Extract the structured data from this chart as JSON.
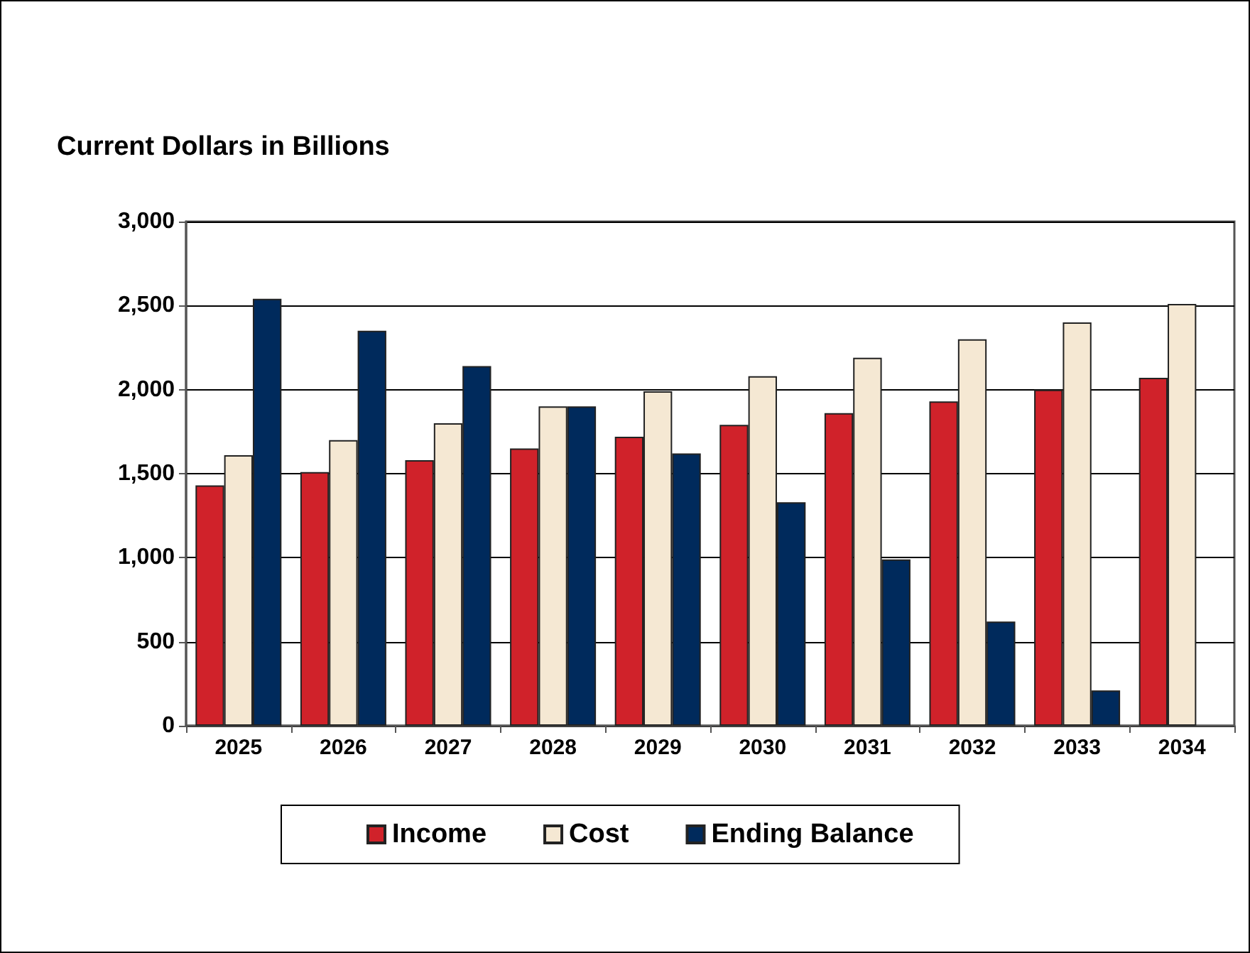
{
  "chart_data": {
    "type": "bar",
    "title": "Current Dollars in Billions",
    "categories": [
      "2025",
      "2026",
      "2027",
      "2028",
      "2029",
      "2030",
      "2031",
      "2032",
      "2033",
      "2034"
    ],
    "series": [
      {
        "name": "Income",
        "color": "#d0222a",
        "values": [
          1430,
          1510,
          1580,
          1650,
          1720,
          1790,
          1860,
          1930,
          2000,
          2070
        ]
      },
      {
        "name": "Cost",
        "color": "#f5e8d3",
        "values": [
          1610,
          1700,
          1800,
          1900,
          1990,
          2080,
          2190,
          2300,
          2400,
          2510
        ]
      },
      {
        "name": "Ending Balance",
        "color": "#002a5c",
        "values": [
          2540,
          2350,
          2140,
          1900,
          1620,
          1330,
          990,
          620,
          210,
          null
        ]
      }
    ],
    "ylim": [
      0,
      3000
    ],
    "yticks": [
      0,
      500,
      {
        "value": 1000,
        "label": "1,000"
      },
      {
        "value": 1500,
        "label": "1,500"
      },
      {
        "value": 2000,
        "label": "2,000"
      },
      {
        "value": 2500,
        "label": "2,500"
      },
      {
        "value": 3000,
        "label": "3,000"
      }
    ],
    "grid": "y",
    "legend": "bottom"
  }
}
